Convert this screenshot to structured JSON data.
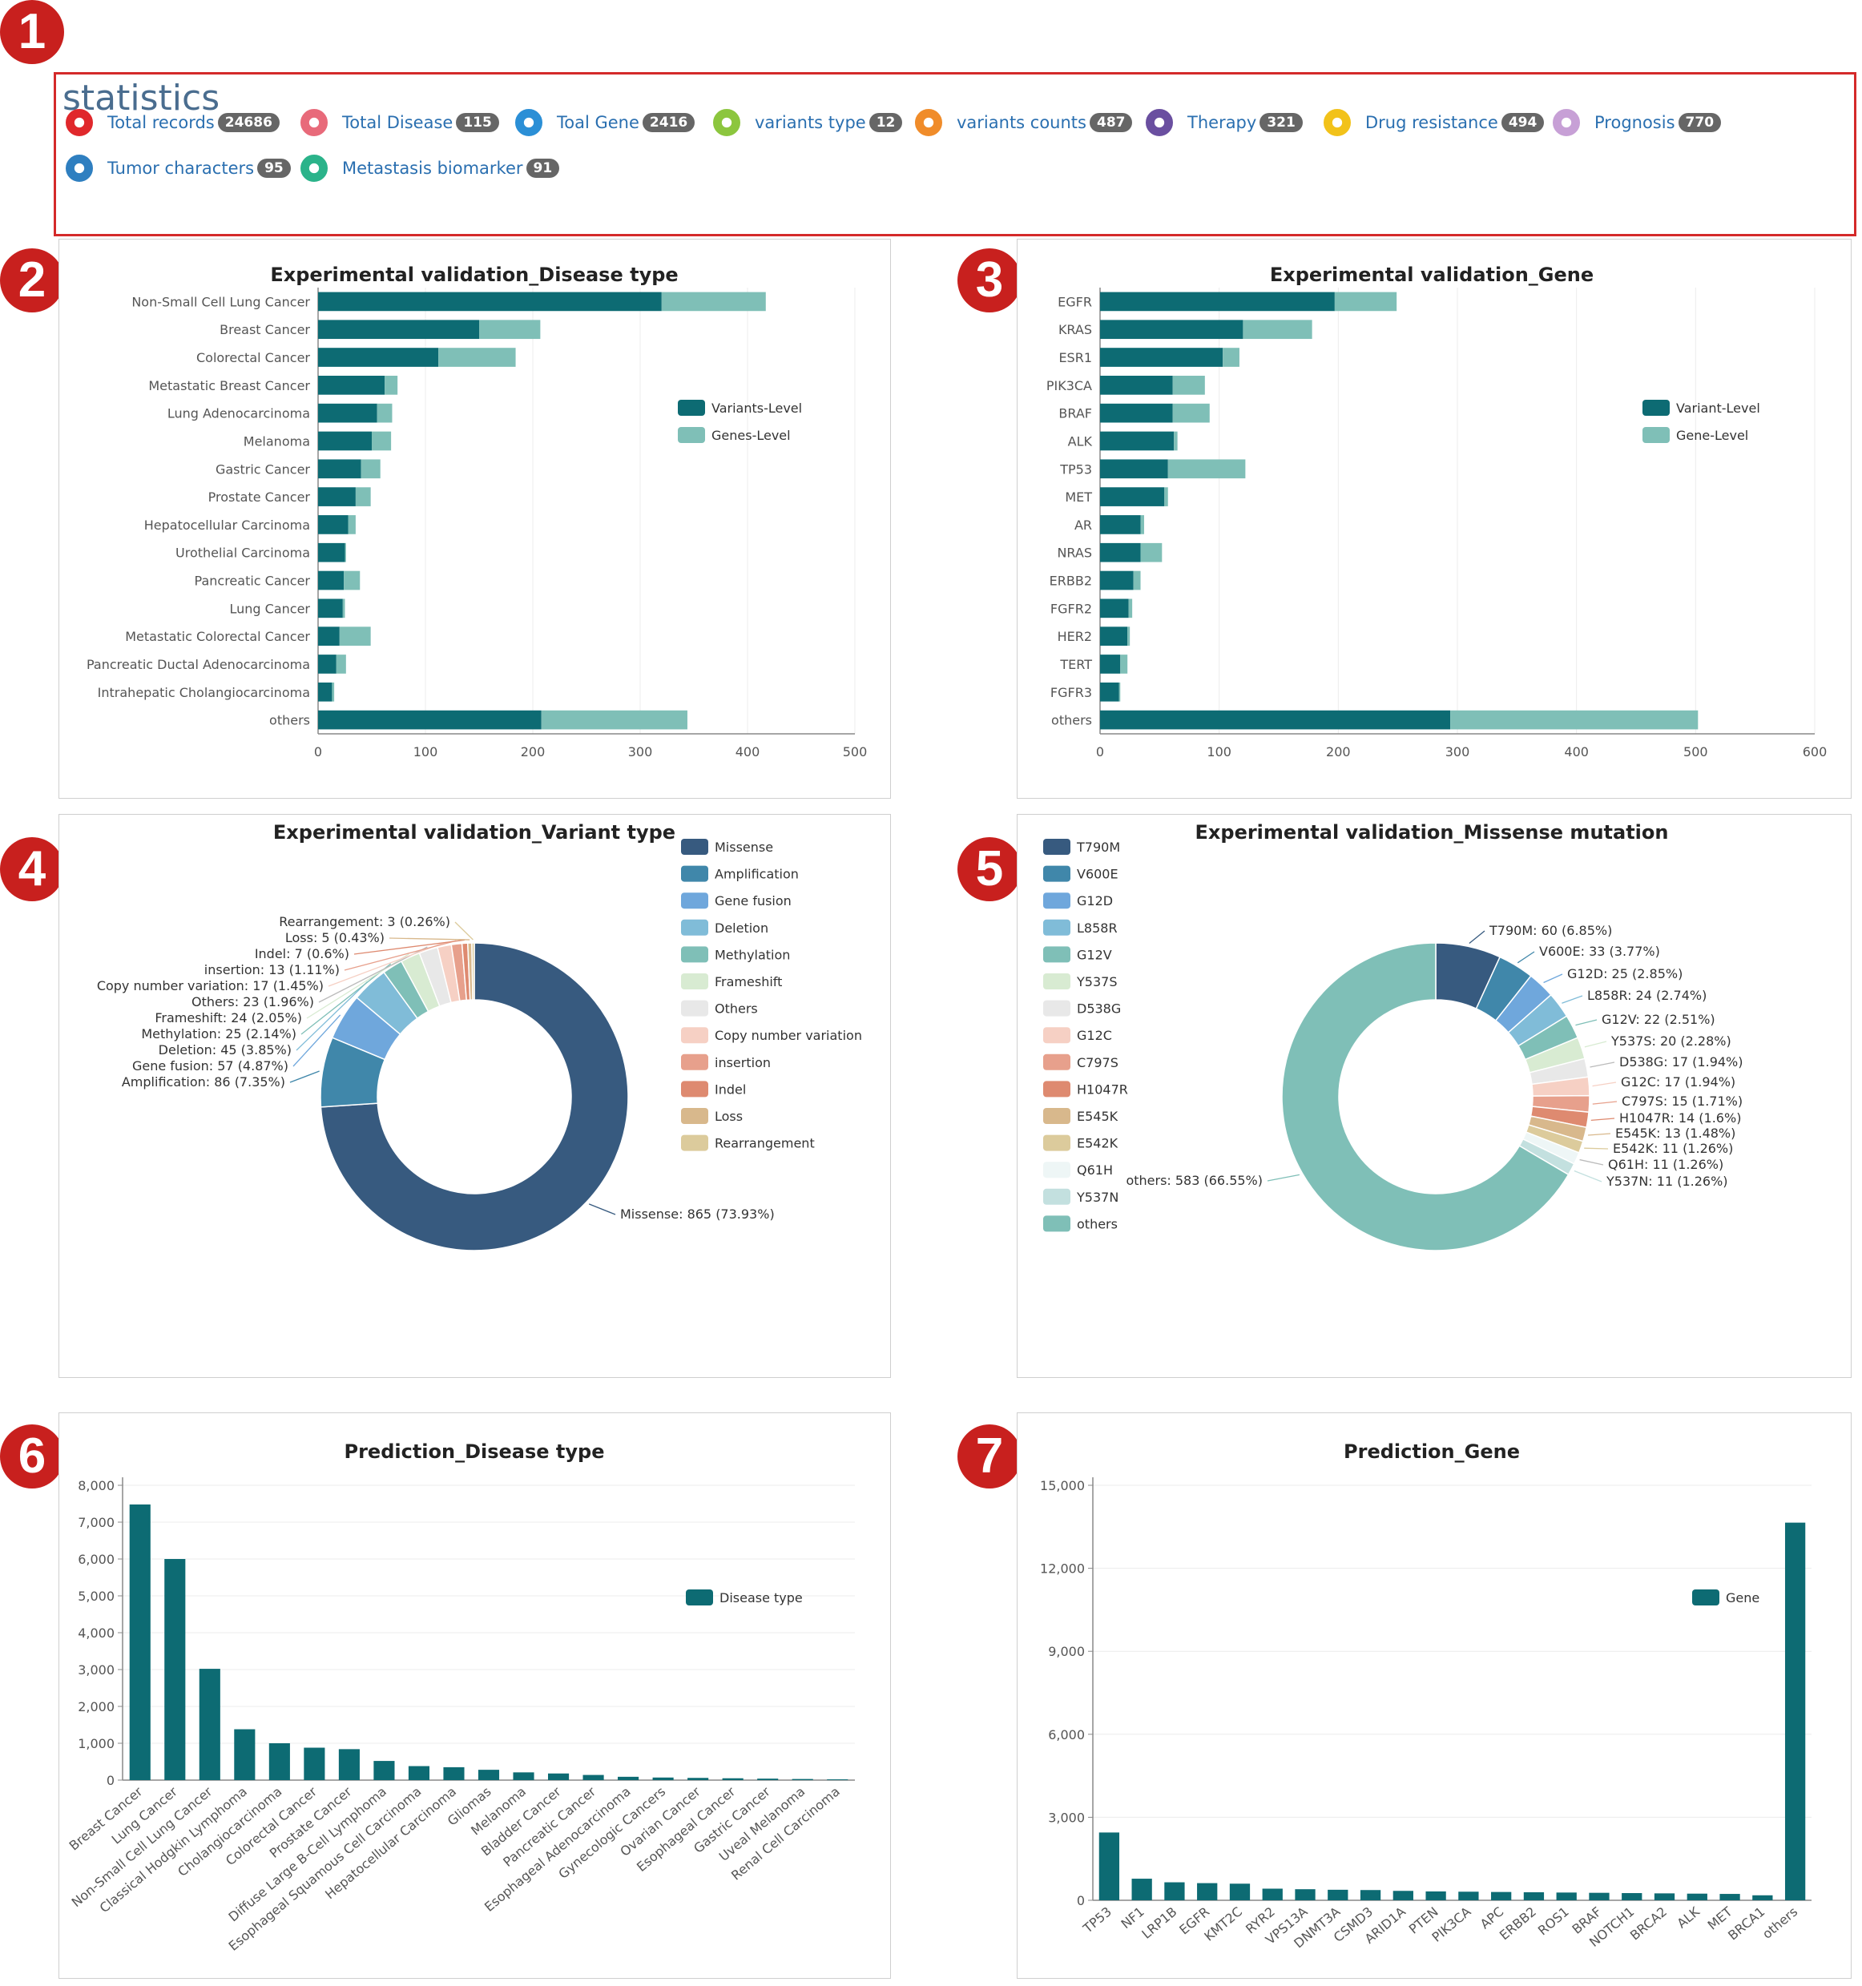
{
  "badges": [
    "1",
    "2",
    "3",
    "4",
    "5",
    "6",
    "7"
  ],
  "statistics": {
    "title": "statistics",
    "items": [
      {
        "label": "Total records",
        "count": "24686",
        "icon": "red-half-circle-icon",
        "color": "#e0282c"
      },
      {
        "label": "Total Disease",
        "count": "115",
        "icon": "pink-target-icon",
        "color": "#e86a7a"
      },
      {
        "label": "Toal Gene",
        "count": "2416",
        "icon": "blue-bowtie-icon",
        "color": "#2b8fd6"
      },
      {
        "label": "variants type",
        "count": "12",
        "icon": "green-bowtie-icon",
        "color": "#8cc63e"
      },
      {
        "label": "variants counts",
        "count": "487",
        "icon": "orange-half-circle-icon",
        "color": "#f08c2a"
      },
      {
        "label": "Therapy",
        "count": "321",
        "icon": "purple-globe-icon",
        "color": "#6a4fa0"
      },
      {
        "label": "Drug resistance",
        "count": "494",
        "icon": "yellow-diamond-icon",
        "color": "#f2c21a"
      },
      {
        "label": "Prognosis",
        "count": "770",
        "icon": "lavender-spiral-icon",
        "color": "#c7a0d6"
      },
      {
        "label": "Tumor characters",
        "count": "95",
        "icon": "blue-split-circle-icon",
        "color": "#2f7fc0"
      },
      {
        "label": "Metastasis biomarker",
        "count": "91",
        "icon": "teal-triangle-icon",
        "color": "#2bb38a"
      }
    ]
  },
  "chart_data": [
    {
      "id": "c2",
      "type": "bar",
      "orientation": "horizontal",
      "stacked": true,
      "title": "Experimental validation_Disease type",
      "categories": [
        "Non-Small Cell Lung Cancer",
        "Breast Cancer",
        "Colorectal Cancer",
        "Metastatic Breast Cancer",
        "Lung Adenocarcinoma",
        "Melanoma",
        "Gastric Cancer",
        "Prostate Cancer",
        "Hepatocellular Carcinoma",
        "Urothelial Carcinoma",
        "Pancreatic Cancer",
        "Lung Cancer",
        "Metastatic Colorectal Cancer",
        "Pancreatic Ductal Adenocarcinoma",
        "Intrahepatic Cholangiocarcinoma",
        "others"
      ],
      "series": [
        {
          "name": "Variants-Level",
          "color": "#0d6b73",
          "values": [
            320,
            150,
            112,
            62,
            55,
            50,
            40,
            35,
            28,
            25,
            24,
            23,
            20,
            17,
            13,
            208
          ]
        },
        {
          "name": "Genes-Level",
          "color": "#7fbfb7",
          "values": [
            97,
            57,
            72,
            12,
            14,
            18,
            18,
            14,
            7,
            1,
            15,
            2,
            29,
            9,
            2,
            136
          ]
        }
      ],
      "xlim": [
        0,
        500
      ],
      "xticks": [
        "0",
        "100",
        "200",
        "300",
        "400",
        "500"
      ],
      "legend": "right"
    },
    {
      "id": "c3",
      "type": "bar",
      "orientation": "horizontal",
      "stacked": true,
      "title": "Experimental validation_Gene",
      "categories": [
        "EGFR",
        "KRAS",
        "ESR1",
        "PIK3CA",
        "BRAF",
        "ALK",
        "TP53",
        "MET",
        "AR",
        "NRAS",
        "ERBB2",
        "FGFR2",
        "HER2",
        "TERT",
        "FGFR3",
        "others"
      ],
      "series": [
        {
          "name": "Variant-Level",
          "color": "#0d6b73",
          "values": [
            197,
            120,
            103,
            61,
            61,
            62,
            57,
            54,
            34,
            34,
            28,
            24,
            23,
            17,
            16,
            294
          ]
        },
        {
          "name": "Gene-Level",
          "color": "#7fbfb7",
          "values": [
            52,
            58,
            14,
            27,
            31,
            3,
            65,
            3,
            3,
            18,
            6,
            3,
            2,
            6,
            1,
            208
          ]
        }
      ],
      "xlim": [
        0,
        600
      ],
      "xticks": [
        "0",
        "100",
        "200",
        "300",
        "400",
        "500",
        "600"
      ],
      "legend": "right"
    },
    {
      "id": "c4",
      "type": "pie",
      "donut": true,
      "title": "Experimental validation_Variant type",
      "slices": [
        {
          "name": "Missense",
          "value": 865,
          "label": "Missense: 865 (73.93%)",
          "color": "#375a7f"
        },
        {
          "name": "Amplification",
          "value": 86,
          "label": "Amplification: 86 (7.35%)",
          "color": "#4087aa"
        },
        {
          "name": "Gene fusion",
          "value": 57,
          "label": "Gene fusion: 57 (4.87%)",
          "color": "#6fa7dc"
        },
        {
          "name": "Deletion",
          "value": 45,
          "label": "Deletion: 45 (3.85%)",
          "color": "#80bcd8"
        },
        {
          "name": "Methylation",
          "value": 25,
          "label": "Methylation: 25 (2.14%)",
          "color": "#7fbfb7"
        },
        {
          "name": "Frameshift",
          "value": 24,
          "label": "Frameshift: 24 (2.05%)",
          "color": "#d8ebd2"
        },
        {
          "name": "Others",
          "value": 23,
          "label": "Others: 23 (1.96%)",
          "color": "#e8e8e8"
        },
        {
          "name": "Copy number variation",
          "value": 17,
          "label": "Copy number variation: 17 (1.45%)",
          "color": "#f6d0c4"
        },
        {
          "name": "insertion",
          "value": 13,
          "label": "insertion: 13 (1.11%)",
          "color": "#e7a08c"
        },
        {
          "name": "Indel",
          "value": 7,
          "label": "Indel: 7 (0.6%)",
          "color": "#de8a70"
        },
        {
          "name": "Loss",
          "value": 5,
          "label": "Loss: 5 (0.43%)",
          "color": "#d8b88c"
        },
        {
          "name": "Rearrangement",
          "value": 3,
          "label": "Rearrangement: 3 (0.26%)",
          "color": "#dccb9c"
        }
      ],
      "legend": "right"
    },
    {
      "id": "c5",
      "type": "pie",
      "donut": true,
      "title": "Experimental validation_Missense mutation",
      "slices": [
        {
          "name": "T790M",
          "value": 60,
          "label": "T790M: 60 (6.85%)",
          "color": "#375a7f"
        },
        {
          "name": "V600E",
          "value": 33,
          "label": "V600E: 33 (3.77%)",
          "color": "#4087aa"
        },
        {
          "name": "G12D",
          "value": 25,
          "label": "G12D: 25 (2.85%)",
          "color": "#6fa7dc"
        },
        {
          "name": "L858R",
          "value": 24,
          "label": "L858R: 24 (2.74%)",
          "color": "#80bcd8"
        },
        {
          "name": "G12V",
          "value": 22,
          "label": "G12V: 22 (2.51%)",
          "color": "#7fbfb7"
        },
        {
          "name": "Y537S",
          "value": 20,
          "label": "Y537S: 20 (2.28%)",
          "color": "#d8ebd2"
        },
        {
          "name": "D538G",
          "value": 17,
          "label": "D538G: 17 (1.94%)",
          "color": "#e8e8e8"
        },
        {
          "name": "G12C",
          "value": 17,
          "label": "G12C: 17 (1.94%)",
          "color": "#f6d0c4"
        },
        {
          "name": "C797S",
          "value": 15,
          "label": "C797S: 15 (1.71%)",
          "color": "#e7a08c"
        },
        {
          "name": "H1047R",
          "value": 14,
          "label": "H1047R: 14 (1.6%)",
          "color": "#de8a70"
        },
        {
          "name": "E545K",
          "value": 13,
          "label": "E545K: 13 (1.48%)",
          "color": "#d8b88c"
        },
        {
          "name": "E542K",
          "value": 11,
          "label": "E542K: 11 (1.26%)",
          "color": "#dccb9c"
        },
        {
          "name": "Q61H",
          "value": 11,
          "label": "Q61H: 11 (1.26%)",
          "color": "#eef6f6"
        },
        {
          "name": "Y537N",
          "value": 11,
          "label": "Y537N: 11 (1.26%)",
          "color": "#c3e0df"
        },
        {
          "name": "others",
          "value": 583,
          "label": "others: 583 (66.55%)",
          "color": "#7fbfb7"
        }
      ],
      "legend": "left"
    },
    {
      "id": "c6",
      "type": "bar",
      "orientation": "vertical",
      "title": "Prediction_Disease type",
      "categories": [
        "Breast Cancer",
        "Lung Cancer",
        "Non-Small Cell Lung Cancer",
        "Classical Hodgkin Lymphoma",
        "Cholangiocarcinoma",
        "Colorectal Cancer",
        "Prostate Cancer",
        "Diffuse Large B-Cell Lymphoma",
        "Esophageal Squamous Cell Carcinoma",
        "Hepatocellular Carcinoma",
        "Gliomas",
        "Melanoma",
        "Bladder Cancer",
        "Pancreatic Cancer",
        "Esophageal Adenocarcinoma",
        "Gynecologic Cancers",
        "Ovarian Cancer",
        "Esophageal Cancer",
        "Gastric Cancer",
        "Uveal Melanoma",
        "Renal Cell Carcinoma"
      ],
      "series": [
        {
          "name": "Disease type",
          "color": "#0d6b73",
          "values": [
            7480,
            6000,
            3020,
            1380,
            1000,
            880,
            840,
            520,
            380,
            350,
            280,
            210,
            180,
            140,
            90,
            70,
            60,
            50,
            40,
            30,
            20
          ]
        }
      ],
      "ylim": [
        0,
        8000
      ],
      "yticks": [
        "0",
        "1,000",
        "2,000",
        "3,000",
        "4,000",
        "5,000",
        "6,000",
        "7,000",
        "8,000"
      ],
      "legend": "right"
    },
    {
      "id": "c7",
      "type": "bar",
      "orientation": "vertical",
      "title": "Prediction_Gene",
      "categories": [
        "TP53",
        "NF1",
        "LRP1B",
        "EGFR",
        "KMT2C",
        "RYR2",
        "VPS13A",
        "DNMT3A",
        "CSMD3",
        "ARID1A",
        "PTEN",
        "PIK3CA",
        "APC",
        "ERBB2",
        "ROS1",
        "BRAF",
        "NOTCH1",
        "BRCA2",
        "ALK",
        "MET",
        "BRCA1",
        "others"
      ],
      "series": [
        {
          "name": "Gene",
          "color": "#0d6b73",
          "values": [
            2450,
            780,
            650,
            620,
            600,
            420,
            400,
            380,
            370,
            340,
            320,
            310,
            300,
            290,
            280,
            270,
            260,
            250,
            240,
            230,
            180,
            13650
          ]
        }
      ],
      "ylim": [
        0,
        15000
      ],
      "yticks": [
        "0",
        "3,000",
        "6,000",
        "9,000",
        "12,000",
        "15,000"
      ],
      "legend": "right"
    }
  ]
}
